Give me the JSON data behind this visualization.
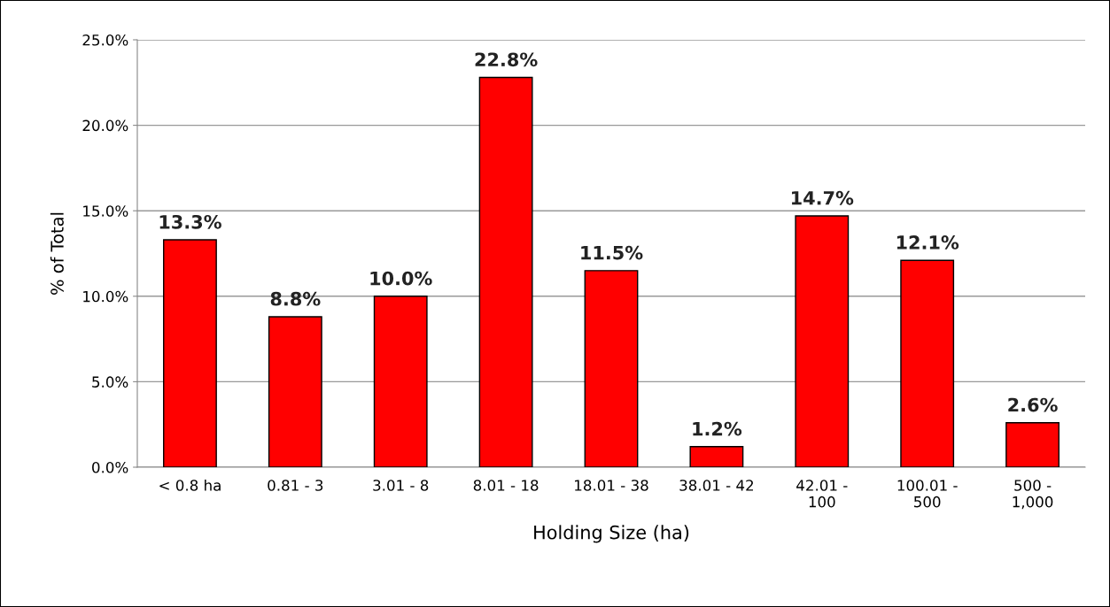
{
  "chart_data": {
    "type": "bar",
    "xlabel": "Holding Size (ha)",
    "ylabel": "% of Total",
    "categories": [
      "< 0.8 ha",
      "0.81 - 3",
      "3.01 - 8",
      "8.01 - 18",
      "18.01 - 38",
      "38.01 - 42",
      "42.01 -\n100",
      "100.01 -\n500",
      "500 -\n1,000"
    ],
    "values": [
      13.3,
      8.8,
      10.0,
      22.8,
      11.5,
      1.2,
      14.7,
      12.1,
      2.6
    ],
    "value_labels": [
      "13.3%",
      "8.8%",
      "10.0%",
      "22.8%",
      "11.5%",
      "1.2%",
      "14.7%",
      "12.1%",
      "2.6%"
    ],
    "color": "#ff0000",
    "ylim": [
      0,
      25
    ],
    "yticks": [
      {
        "value": 0,
        "label": "0.0%"
      },
      {
        "value": 5,
        "label": "5.0%"
      },
      {
        "value": 10,
        "label": "10.0%"
      },
      {
        "value": 15,
        "label": "15.0%"
      },
      {
        "value": 20,
        "label": "20.0%"
      },
      {
        "value": 25,
        "label": "25.0%"
      }
    ],
    "grid": "y"
  }
}
